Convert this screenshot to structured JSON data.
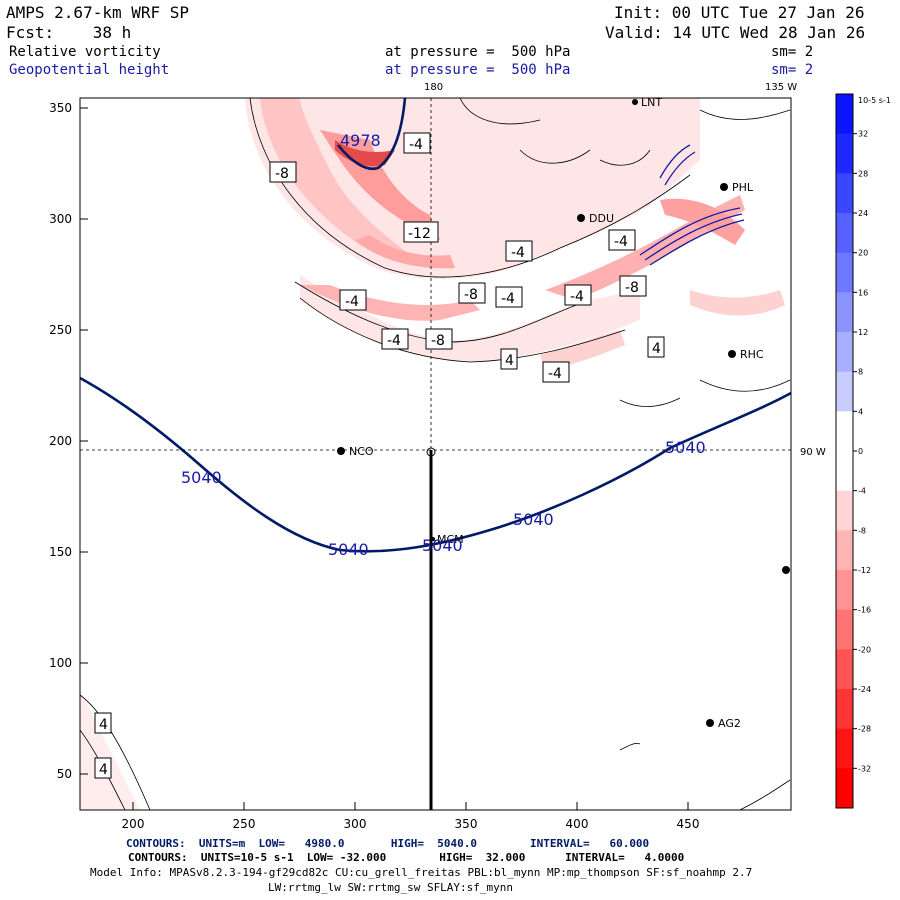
{
  "header": {
    "title": "AMPS 2.67-km WRF SP",
    "forecast": "Fcst:    38 h",
    "init": "Init: 00 UTC Tue 27 Jan 26",
    "valid": "Valid: 14 UTC Wed 28 Jan 26",
    "field1_name": "Relative vorticity",
    "field1_level": "at pressure =  500 hPa",
    "field1_sm": "sm= 2",
    "field2_name": "Geopotential height",
    "field2_level": "at pressure =  500 hPa",
    "field2_sm": "sm= 2"
  },
  "map": {
    "lon_labels": [
      "180",
      "135 W",
      "90 W"
    ],
    "x_ticks": [
      "200",
      "250",
      "300",
      "350",
      "400",
      "450"
    ],
    "y_ticks": [
      "350",
      "300",
      "250",
      "200",
      "150",
      "100",
      "50"
    ],
    "stations": [
      "NCO",
      "MCM",
      "RHC",
      "AG2",
      "DDU",
      "LNT",
      "PHL"
    ],
    "height_labels": [
      "4978",
      "5040",
      "5040",
      "5040",
      "5040",
      "5040"
    ],
    "vort_labels": [
      "-4",
      "-8",
      "-12",
      "-4",
      "-8",
      "-4",
      "-4",
      "-8",
      "-4",
      "-8",
      "4",
      "4",
      "-4",
      "-4",
      "-4",
      "4",
      "4"
    ]
  },
  "colorbar": {
    "unit": "10-5 s-1",
    "labels": [
      "32",
      "28",
      "24",
      "20",
      "16",
      "12",
      "8",
      "4",
      "0",
      "-4",
      "-8",
      "-12",
      "-16",
      "-20",
      "-24",
      "-28",
      "-32"
    ],
    "colors": [
      "#0a14ff",
      "#1e28ff",
      "#3a46ff",
      "#5560ff",
      "#6f79ff",
      "#8b93ff",
      "#a9afff",
      "#c8ccff",
      "#ffffff",
      "#ffffff",
      "#ffd4d4",
      "#ffb4b4",
      "#ff9494",
      "#ff7474",
      "#ff5454",
      "#ff3434",
      "#ff1414",
      "#ff0000"
    ]
  },
  "footer": {
    "contours1": "CONTOURS:  UNITS=m  LOW=   4980.0       HIGH=  5040.0        INTERVAL=   60.000",
    "contours2": "CONTOURS:  UNITS=10-5 s-1  LOW= -32.000        HIGH=  32.000      INTERVAL=   4.0000",
    "model_info": "Model Info: MPASv8.2.3-194-gf29cd82c CU:cu_grell_freitas PBL:bl_mynn MP:mp_thompson SF:sf_noahmp 2.7",
    "model_info2": "LW:rrtmg_lw SW:rrtmg_sw SFLAY:sf_mynn"
  }
}
